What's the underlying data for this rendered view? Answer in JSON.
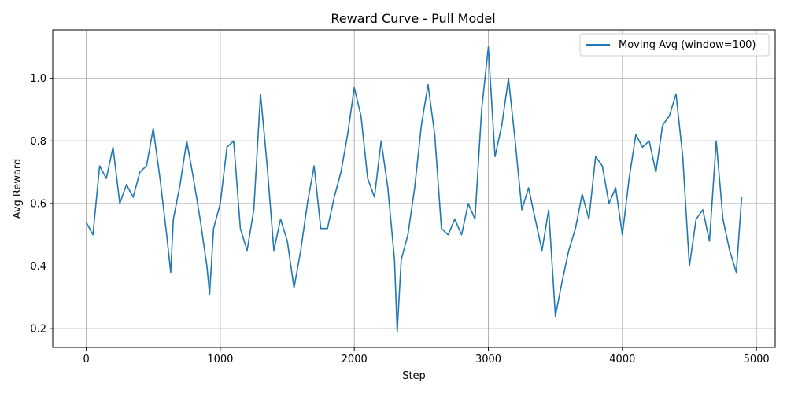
{
  "chart_data": {
    "type": "line",
    "title": "Reward Curve - Pull Model",
    "xlabel": "Step",
    "ylabel": "Avg Reward",
    "xlim": [
      -250,
      5140
    ],
    "ylim": [
      0.14,
      1.155
    ],
    "xticks": [
      0,
      1000,
      2000,
      3000,
      4000,
      5000
    ],
    "yticks": [
      0.2,
      0.4,
      0.6,
      0.8,
      1.0
    ],
    "xtick_labels": [
      "0",
      "1000",
      "2000",
      "3000",
      "4000",
      "5000"
    ],
    "ytick_labels": [
      "0.2",
      "0.4",
      "0.6",
      "0.8",
      "1.0"
    ],
    "grid": true,
    "legend": "top-right",
    "line_color": "#1f77b4",
    "series": [
      {
        "name": "Moving Avg (window=100)",
        "x": [
          0,
          50,
          100,
          150,
          200,
          250,
          300,
          350,
          400,
          450,
          500,
          550,
          600,
          630,
          650,
          700,
          750,
          800,
          850,
          900,
          920,
          950,
          1000,
          1050,
          1100,
          1150,
          1200,
          1250,
          1300,
          1350,
          1400,
          1450,
          1500,
          1550,
          1600,
          1650,
          1700,
          1750,
          1800,
          1850,
          1900,
          1950,
          2000,
          2050,
          2100,
          2150,
          2200,
          2250,
          2300,
          2320,
          2350,
          2400,
          2450,
          2500,
          2550,
          2600,
          2650,
          2700,
          2750,
          2800,
          2850,
          2900,
          2950,
          3000,
          3050,
          3100,
          3150,
          3200,
          3250,
          3300,
          3350,
          3400,
          3450,
          3500,
          3550,
          3600,
          3650,
          3700,
          3750,
          3800,
          3850,
          3900,
          3950,
          4000,
          4050,
          4100,
          4150,
          4200,
          4250,
          4300,
          4350,
          4400,
          4450,
          4500,
          4550,
          4600,
          4650,
          4700,
          4750,
          4800,
          4850,
          4890
        ],
        "y": [
          0.54,
          0.5,
          0.72,
          0.68,
          0.78,
          0.6,
          0.66,
          0.62,
          0.7,
          0.72,
          0.84,
          0.68,
          0.5,
          0.38,
          0.55,
          0.66,
          0.8,
          0.68,
          0.55,
          0.4,
          0.31,
          0.52,
          0.6,
          0.78,
          0.8,
          0.52,
          0.45,
          0.58,
          0.95,
          0.72,
          0.45,
          0.55,
          0.48,
          0.33,
          0.45,
          0.6,
          0.72,
          0.52,
          0.52,
          0.62,
          0.7,
          0.82,
          0.97,
          0.88,
          0.68,
          0.62,
          0.8,
          0.65,
          0.42,
          0.19,
          0.42,
          0.5,
          0.65,
          0.85,
          0.98,
          0.82,
          0.52,
          0.5,
          0.55,
          0.5,
          0.6,
          0.55,
          0.9,
          1.1,
          0.75,
          0.85,
          1.0,
          0.8,
          0.58,
          0.65,
          0.55,
          0.45,
          0.58,
          0.24,
          0.35,
          0.45,
          0.52,
          0.63,
          0.55,
          0.75,
          0.72,
          0.6,
          0.65,
          0.5,
          0.68,
          0.82,
          0.78,
          0.8,
          0.7,
          0.85,
          0.88,
          0.95,
          0.75,
          0.4,
          0.55,
          0.58,
          0.48,
          0.8,
          0.55,
          0.45,
          0.38,
          0.62
        ]
      }
    ]
  }
}
